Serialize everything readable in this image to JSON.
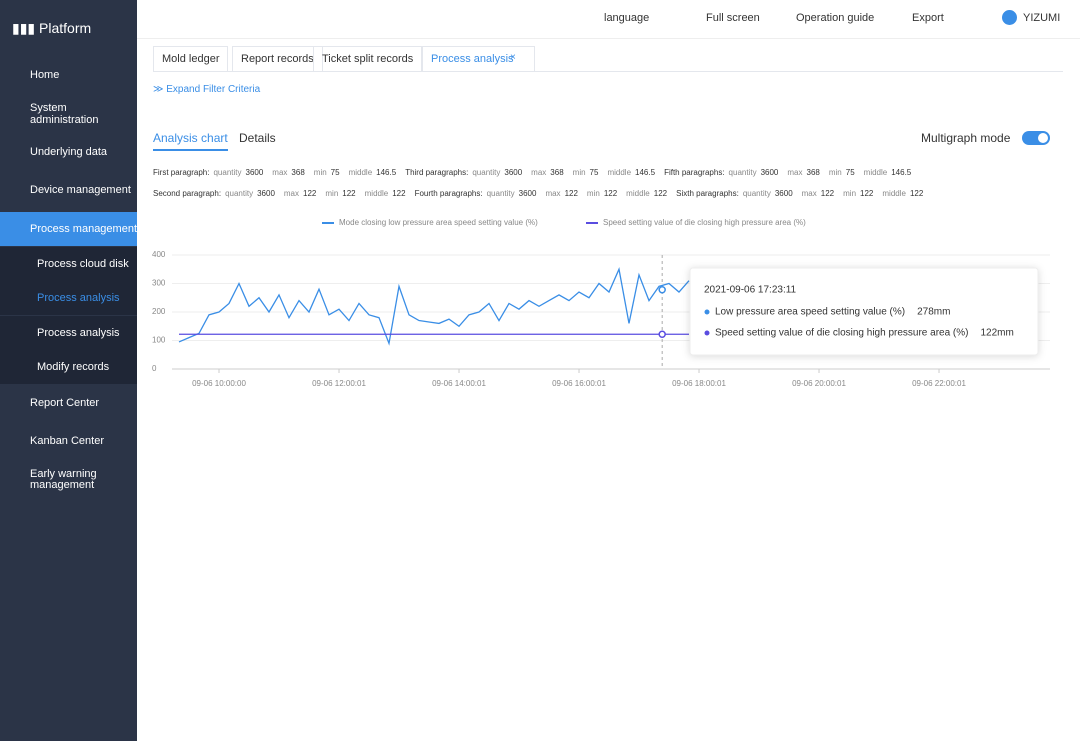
{
  "sidebar": {
    "brand": "Platform",
    "menu": [
      {
        "label": "Home"
      },
      {
        "label": "System administration"
      },
      {
        "label": "Underlying data"
      },
      {
        "label": "Device management"
      },
      {
        "label": "Process management"
      },
      {
        "label": "Process cloud disk"
      },
      {
        "label": "Process analysis"
      },
      {
        "label": "Process analysis"
      },
      {
        "label": "Modify records"
      },
      {
        "label": "Report Center"
      },
      {
        "label": "Kanban Center"
      },
      {
        "label": "Early warning management"
      }
    ]
  },
  "topbar": {
    "items": [
      "language",
      "Full screen",
      "Operation guide",
      "Export"
    ],
    "user": "YIZUMI"
  },
  "tabs": [
    "Mold ledger",
    "Report records",
    "Ticket split records",
    "Process analysis"
  ],
  "filter": "Expand Filter Criteria",
  "subtabs": [
    "Analysis chart",
    "Details"
  ],
  "mode": "Multigraph mode",
  "stats": [
    [
      {
        "label": "First paragraph:",
        "items": [
          {
            "name": "quantity",
            "value": 3600
          },
          {
            "name": "max",
            "value": 368
          },
          {
            "name": "min",
            "value": 75
          },
          {
            "name": "middle",
            "value": 146.5
          }
        ]
      },
      {
        "label": "Third paragraphs:",
        "items": [
          {
            "name": "quantity",
            "value": 3600
          },
          {
            "name": "max",
            "value": 368
          },
          {
            "name": "min",
            "value": 75
          },
          {
            "name": "middle",
            "value": 146.5
          }
        ]
      },
      {
        "label": "Fifth paragraphs:",
        "items": [
          {
            "name": "quantity",
            "value": 3600
          },
          {
            "name": "max",
            "value": 368
          },
          {
            "name": "min",
            "value": 75
          },
          {
            "name": "middle",
            "value": 146.5
          }
        ]
      }
    ],
    [
      {
        "label": "Second paragraph:",
        "items": [
          {
            "name": "quantity",
            "value": 3600
          },
          {
            "name": "max",
            "value": 122
          },
          {
            "name": "min",
            "value": 122
          },
          {
            "name": "middle",
            "value": 122
          }
        ]
      },
      {
        "label": "Fourth paragraphs:",
        "items": [
          {
            "name": "quantity",
            "value": 3600
          },
          {
            "name": "max",
            "value": 122
          },
          {
            "name": "min",
            "value": 122
          },
          {
            "name": "middle",
            "value": 122
          }
        ]
      },
      {
        "label": "Sixth paragraphs:",
        "items": [
          {
            "name": "quantity",
            "value": 3600
          },
          {
            "name": "max",
            "value": 122
          },
          {
            "name": "min",
            "value": 122
          },
          {
            "name": "middle",
            "value": 122
          }
        ]
      }
    ]
  ],
  "chart_data": {
    "type": "line",
    "x": [
      "09-06 09:20:00",
      "09-06 09:30:00",
      "09-06 09:40:00",
      "09-06 09:50:00",
      "09-06 10:00:00",
      "09-06 10:10:00",
      "09-06 10:20:00",
      "09-06 10:30:00",
      "09-06 10:40:00",
      "09-06 10:50:00",
      "09-06 11:00:00",
      "09-06 11:10:00",
      "09-06 11:20:00",
      "09-06 11:30:00",
      "09-06 11:40:00",
      "09-06 11:50:00",
      "09-06 12:00:00",
      "09-06 12:10:00",
      "09-06 12:20:00",
      "09-06 12:30:00",
      "09-06 12:40:00",
      "09-06 12:50:00",
      "09-06 13:00:00",
      "09-06 13:10:00",
      "09-06 13:20:00",
      "09-06 13:30:00",
      "09-06 13:40:00",
      "09-06 13:50:00",
      "09-06 14:00:00",
      "09-06 14:10:00",
      "09-06 14:20:00",
      "09-06 14:30:00",
      "09-06 14:40:00",
      "09-06 14:50:00",
      "09-06 15:00:00",
      "09-06 15:10:00",
      "09-06 15:20:00",
      "09-06 15:30:00",
      "09-06 15:40:00",
      "09-06 15:50:00",
      "09-06 16:00:00",
      "09-06 16:10:00",
      "09-06 16:20:00",
      "09-06 16:30:00",
      "09-06 16:40:00",
      "09-06 16:50:00",
      "09-06 17:00:00",
      "09-06 17:10:00",
      "09-06 17:20:00",
      "09-06 17:30:00",
      "09-06 17:40:00",
      "09-06 17:50:00"
    ],
    "series": [
      {
        "name": "Mode closing low pressure area speed setting value (%)",
        "color": "#3a8ee6",
        "values": [
          95,
          110,
          125,
          190,
          200,
          230,
          300,
          220,
          250,
          200,
          260,
          180,
          240,
          200,
          280,
          190,
          210,
          170,
          230,
          190,
          180,
          90,
          290,
          190,
          170,
          165,
          160,
          175,
          150,
          190,
          200,
          230,
          170,
          230,
          210,
          240,
          220,
          240,
          260,
          240,
          270,
          250,
          300,
          270,
          350,
          160,
          330,
          240,
          290,
          300,
          270,
          310
        ]
      },
      {
        "name": "Speed setting value of die closing high pressure area (%)",
        "color": "#5a4de0",
        "values": [
          122,
          122,
          122,
          122,
          122,
          122,
          122,
          122,
          122,
          122,
          122,
          122,
          122,
          122,
          122,
          122,
          122,
          122,
          122,
          122,
          122,
          122,
          122,
          122,
          122,
          122,
          122,
          122,
          122,
          122,
          122,
          122,
          122,
          122,
          122,
          122,
          122,
          122,
          122,
          122,
          122,
          122,
          122,
          122,
          122,
          122,
          122,
          122,
          122,
          122,
          122,
          122
        ]
      }
    ],
    "xlim": [
      "09-06 09:13:00",
      "09-06 23:51:00"
    ],
    "xticks": [
      "09-06 10:00:00",
      "09-06 12:00:01",
      "09-06 14:00:01",
      "09-06 16:00:01",
      "09-06 18:00:01",
      "09-06 20:00:01",
      "09-06 22:00:01"
    ],
    "ylim": [
      0,
      400
    ],
    "yticks": [
      0,
      100,
      200,
      300,
      400
    ],
    "grid": true,
    "tooltip": {
      "title": "2021-09-06 17:23:11",
      "rows": [
        {
          "name": "Low pressure area speed setting value (%)",
          "value": 278,
          "value_label": "278mm"
        },
        {
          "name": "Speed setting value of die closing high pressure area (%)",
          "value": 122,
          "value_label": "122mm"
        }
      ]
    }
  }
}
